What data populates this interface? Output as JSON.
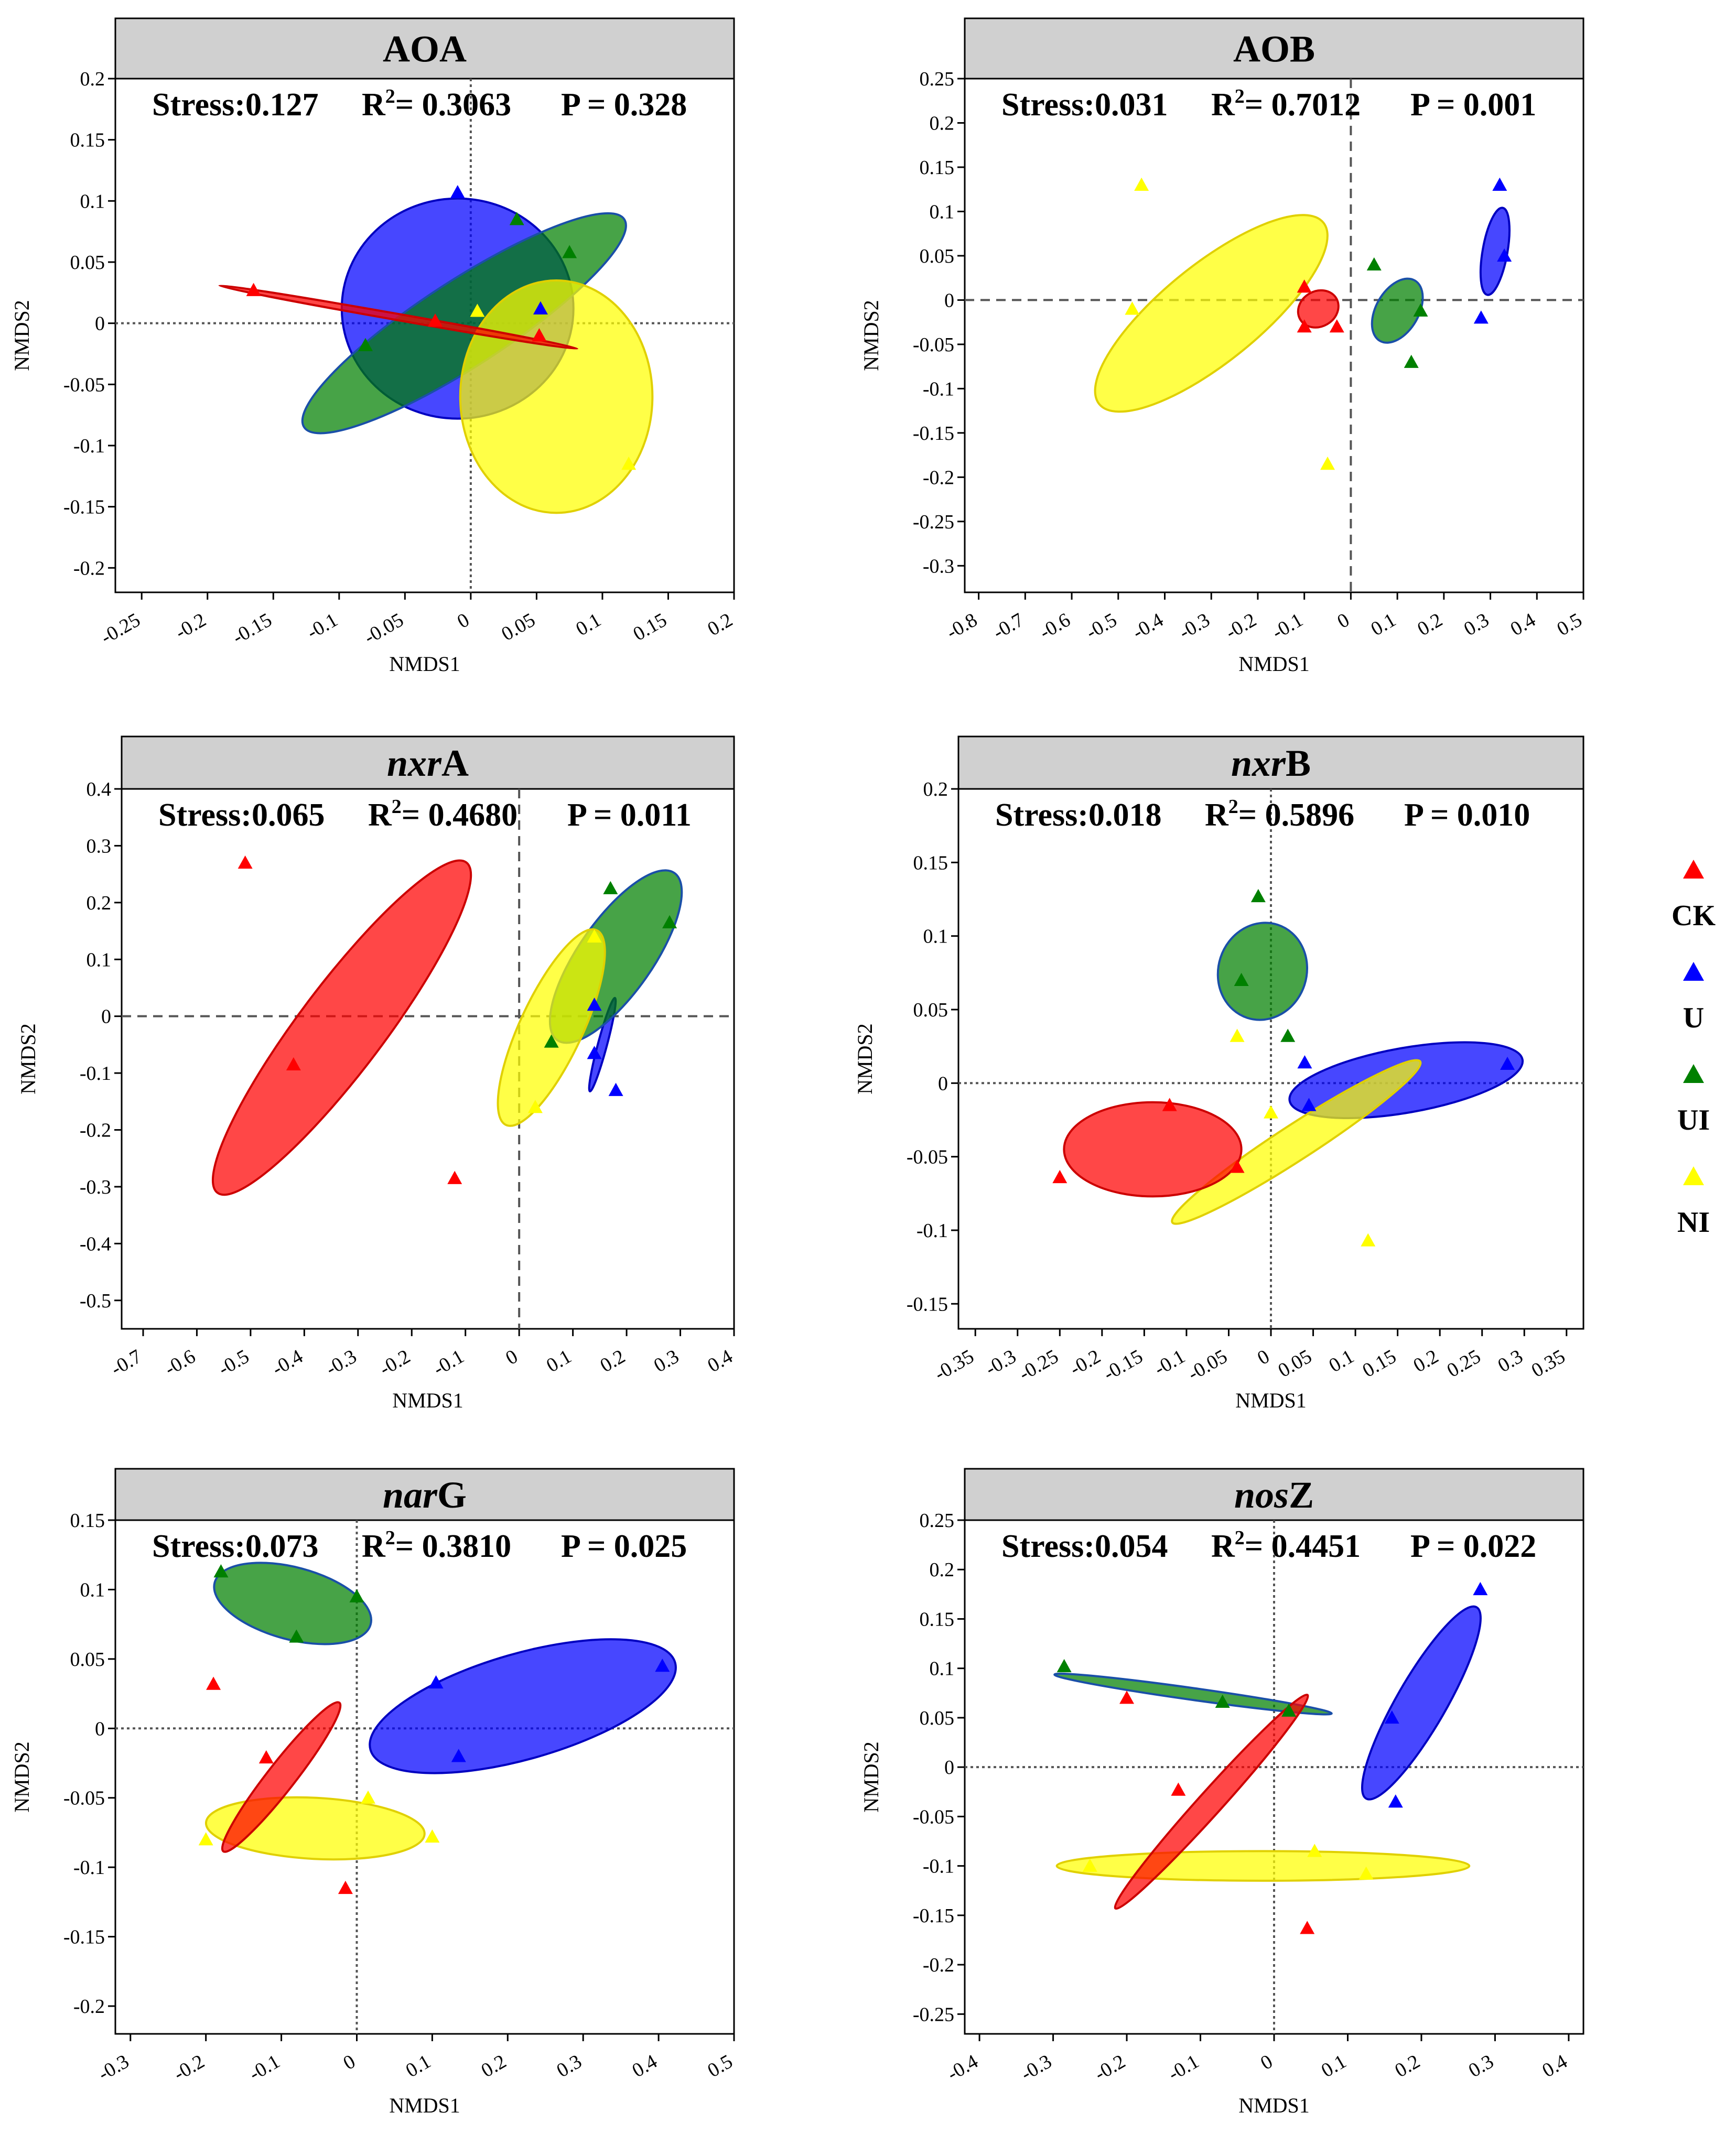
{
  "legend": [
    {
      "label": "CK",
      "color": "#ff0000"
    },
    {
      "label": "U",
      "color": "#0000ff"
    },
    {
      "label": "UI",
      "color": "#008000"
    },
    {
      "label": "NI",
      "color": "#ffff00"
    }
  ],
  "chart_data": [
    {
      "type": "scatter",
      "title": "AOA",
      "stress_label": "Stress:",
      "stress": "0.127",
      "r2_label": "R",
      "r2_sup": "2",
      "r2": "= 0.3063",
      "p": "P = 0.328",
      "xlabel": "NMDS1",
      "ylabel": "NMDS2",
      "xlim": [
        -0.27,
        0.2
      ],
      "ylim": [
        -0.22,
        0.2
      ],
      "xticks": [
        -0.25,
        -0.2,
        -0.15,
        -0.1,
        -0.05,
        0,
        0.05,
        0.1,
        0.15,
        0.2
      ],
      "xtick_labels": [
        "-0.25",
        "-0.2",
        "-0.15",
        "-0.1",
        "-0.05",
        "0",
        "0.05",
        "0.1",
        "0.15",
        "0.2"
      ],
      "yticks": [
        -0.2,
        -0.15,
        -0.1,
        -0.05,
        0,
        0.05,
        0.1,
        0.15,
        0.2
      ],
      "ytick_labels": [
        "-0.2",
        "-0.15",
        "-0.1",
        "-0.05",
        "0",
        "0.05",
        "0.1",
        "0.15",
        "0.2"
      ],
      "zero_line_style": "dotted",
      "series": [
        {
          "name": "U",
          "points": [
            [
              -0.01,
              0.107
            ],
            [
              0.053,
              0.012
            ]
          ],
          "ellipse": {
            "cx": -0.01,
            "cy": 0.012,
            "rx": 0.088,
            "ry": 0.09,
            "angle": 0
          }
        },
        {
          "name": "UI",
          "points": [
            [
              0.035,
              0.085
            ],
            [
              0.075,
              0.058
            ],
            [
              -0.08,
              -0.018
            ]
          ],
          "ellipse": {
            "cx": -0.005,
            "cy": 0.0,
            "rx": 0.145,
            "ry": 0.035,
            "angle": 33
          }
        },
        {
          "name": "NI",
          "points": [
            [
              0.005,
              0.01
            ],
            [
              0.12,
              -0.115
            ]
          ],
          "ellipse": {
            "cx": 0.065,
            "cy": -0.06,
            "rx": 0.073,
            "ry": 0.095,
            "angle": 0
          }
        },
        {
          "name": "CK",
          "points": [
            [
              -0.165,
              0.027
            ],
            [
              -0.027,
              0.002
            ],
            [
              0.052,
              -0.01
            ]
          ],
          "ellipse": {
            "cx": -0.055,
            "cy": 0.005,
            "rx": 0.138,
            "ry": 0.002,
            "angle": -10
          }
        }
      ]
    },
    {
      "type": "scatter",
      "title": "AOB",
      "stress_label": "Stress:",
      "stress": "0.031",
      "r2_label": "R",
      "r2_sup": "2",
      "r2": "= 0.7012",
      "p": "P = 0.001",
      "xlabel": "NMDS1",
      "ylabel": "NMDS2",
      "xlim": [
        -0.83,
        0.5
      ],
      "ylim": [
        -0.33,
        0.25
      ],
      "xticks": [
        -0.8,
        -0.7,
        -0.6,
        -0.5,
        -0.4,
        -0.3,
        -0.2,
        -0.1,
        0,
        0.1,
        0.2,
        0.3,
        0.4,
        0.5
      ],
      "xtick_labels": [
        "-0.8",
        "-0.7",
        "-0.6",
        "-0.5",
        "-0.4",
        "-0.3",
        "-0.2",
        "-0.1",
        "0",
        "0.1",
        "0.2",
        "0.3",
        "0.4",
        "0.5"
      ],
      "yticks": [
        -0.3,
        -0.25,
        -0.2,
        -0.15,
        -0.1,
        -0.05,
        0,
        0.05,
        0.1,
        0.15,
        0.2,
        0.25
      ],
      "ytick_labels": [
        "-0.3",
        "-0.25",
        "-0.2",
        "-0.15",
        "-0.1",
        "-0.05",
        "0",
        "0.05",
        "0.1",
        "0.15",
        "0.2",
        "0.25"
      ],
      "zero_line_style": "dashed",
      "series": [
        {
          "name": "NI",
          "points": [
            [
              -0.45,
              0.13
            ],
            [
              -0.47,
              -0.01
            ],
            [
              -0.05,
              -0.185
            ]
          ],
          "ellipse": {
            "cx": -0.3,
            "cy": -0.015,
            "rx": 0.31,
            "ry": 0.055,
            "angle": 39
          }
        },
        {
          "name": "CK",
          "points": [
            [
              -0.1,
              0.015
            ],
            [
              -0.1,
              -0.03
            ],
            [
              -0.03,
              -0.03
            ]
          ],
          "ellipse": {
            "cx": -0.07,
            "cy": -0.01,
            "rx": 0.045,
            "ry": 0.02,
            "angle": 30
          }
        },
        {
          "name": "UI",
          "points": [
            [
              0.05,
              0.04
            ],
            [
              0.15,
              -0.012
            ],
            [
              0.13,
              -0.07
            ]
          ],
          "ellipse": {
            "cx": 0.1,
            "cy": -0.012,
            "rx": 0.075,
            "ry": 0.024,
            "angle": 60
          }
        },
        {
          "name": "U",
          "points": [
            [
              0.32,
              0.13
            ],
            [
              0.33,
              0.05
            ],
            [
              0.28,
              -0.02
            ]
          ],
          "ellipse": {
            "cx": 0.31,
            "cy": 0.055,
            "rx": 0.095,
            "ry": 0.014,
            "angle": 80
          }
        }
      ]
    },
    {
      "type": "scatter",
      "title_italic": "nxr",
      "title": "A",
      "stress_label": "Stress:",
      "stress": "0.065",
      "r2_label": "R",
      "r2_sup": "2",
      "r2": "= 0.4680",
      "p": "P = 0.011",
      "xlabel": "NMDS1",
      "ylabel": "NMDS2",
      "xlim": [
        -0.74,
        0.4
      ],
      "ylim": [
        -0.55,
        0.4
      ],
      "xticks": [
        -0.7,
        -0.6,
        -0.5,
        -0.4,
        -0.3,
        -0.2,
        -0.1,
        0,
        0.1,
        0.2,
        0.3,
        0.4
      ],
      "xtick_labels": [
        "-0.7",
        "-0.6",
        "-0.5",
        "-0.4",
        "-0.3",
        "-0.2",
        "-0.1",
        "0",
        "0.1",
        "0.2",
        "0.3",
        "0.4"
      ],
      "yticks": [
        -0.5,
        -0.4,
        -0.3,
        -0.2,
        -0.1,
        0,
        0.1,
        0.2,
        0.3,
        0.4
      ],
      "ytick_labels": [
        "-0.5",
        "-0.4",
        "-0.3",
        "-0.2",
        "-0.1",
        "0",
        "0.1",
        "0.2",
        "0.3",
        "0.4"
      ],
      "zero_line_style": "dashed",
      "series": [
        {
          "name": "CK",
          "points": [
            [
              -0.51,
              0.27
            ],
            [
              -0.42,
              -0.085
            ],
            [
              -0.12,
              -0.285
            ]
          ],
          "ellipse": {
            "cx": -0.33,
            "cy": -0.02,
            "rx": 0.385,
            "ry": 0.075,
            "angle": 53
          }
        },
        {
          "name": "NI",
          "points": [
            [
              0.14,
              0.14
            ],
            [
              0.03,
              -0.16
            ]
          ],
          "ellipse": {
            "cx": 0.06,
            "cy": -0.02,
            "rx": 0.2,
            "ry": 0.055,
            "angle": 65
          }
        },
        {
          "name": "UI",
          "points": [
            [
              0.17,
              0.225
            ],
            [
              0.28,
              0.165
            ],
            [
              0.06,
              -0.045
            ]
          ],
          "ellipse": {
            "cx": 0.18,
            "cy": 0.105,
            "rx": 0.19,
            "ry": 0.065,
            "angle": 55
          }
        },
        {
          "name": "U",
          "points": [
            [
              0.14,
              0.02
            ],
            [
              0.14,
              -0.065
            ],
            [
              0.18,
              -0.13
            ]
          ],
          "ellipse": {
            "cx": 0.155,
            "cy": -0.05,
            "rx": 0.09,
            "ry": 0.008,
            "angle": 75
          }
        }
      ]
    },
    {
      "type": "scatter",
      "title_italic": "nxr",
      "title": "B",
      "stress_label": "Stress:",
      "stress": "0.018",
      "r2_label": "R",
      "r2_sup": "2",
      "r2": "= 0.5896",
      "p": "P = 0.010",
      "xlabel": "NMDS1",
      "ylabel": "NMDS2",
      "xlim": [
        -0.37,
        0.37
      ],
      "ylim": [
        -0.167,
        0.2
      ],
      "xticks": [
        -0.35,
        -0.3,
        -0.25,
        -0.2,
        -0.15,
        -0.1,
        -0.05,
        0,
        0.05,
        0.1,
        0.15,
        0.2,
        0.25,
        0.3,
        0.35
      ],
      "xtick_labels": [
        "-0.35",
        "-0.3",
        "-0.25",
        "-0.2",
        "-0.15",
        "-0.1",
        "-0.05",
        "0",
        "0.05",
        "0.1",
        "0.15",
        "0.2",
        "0.25",
        "0.3",
        "0.35"
      ],
      "yticks": [
        -0.15,
        -0.1,
        -0.05,
        0,
        0.05,
        0.1,
        0.15,
        0.2
      ],
      "ytick_labels": [
        "-0.15",
        "-0.1",
        "-0.05",
        "0",
        "0.05",
        "0.1",
        "0.15",
        "0.2"
      ],
      "zero_line_style": "dotted",
      "series": [
        {
          "name": "UI",
          "points": [
            [
              -0.015,
              0.127
            ],
            [
              -0.035,
              0.07
            ],
            [
              0.02,
              0.032
            ]
          ],
          "ellipse": {
            "cx": -0.01,
            "cy": 0.076,
            "rx": 0.058,
            "ry": 0.03,
            "angle": 72
          }
        },
        {
          "name": "U",
          "points": [
            [
              0.04,
              0.014
            ],
            [
              0.045,
              -0.015
            ],
            [
              0.28,
              0.013
            ]
          ],
          "ellipse": {
            "cx": 0.16,
            "cy": 0.002,
            "rx": 0.14,
            "ry": 0.022,
            "angle": 10
          }
        },
        {
          "name": "NI",
          "points": [
            [
              -0.04,
              0.032
            ],
            [
              0.0,
              -0.02
            ],
            [
              0.115,
              -0.107
            ]
          ],
          "ellipse": {
            "cx": 0.03,
            "cy": -0.04,
            "rx": 0.175,
            "ry": 0.012,
            "angle": 33
          }
        },
        {
          "name": "CK",
          "points": [
            [
              -0.25,
              -0.064
            ],
            [
              -0.12,
              -0.015
            ],
            [
              -0.04,
              -0.057
            ]
          ],
          "ellipse": {
            "cx": -0.14,
            "cy": -0.045,
            "rx": 0.105,
            "ry": 0.032,
            "angle": 0
          }
        }
      ]
    },
    {
      "type": "scatter",
      "title_italic": "nar",
      "title": "G",
      "stress_label": "Stress:",
      "stress": "0.073",
      "r2_label": "R",
      "r2_sup": "2",
      "r2": "= 0.3810",
      "p": "P = 0.025",
      "xlabel": "NMDS1",
      "ylabel": "NMDS2",
      "xlim": [
        -0.32,
        0.5
      ],
      "ylim": [
        -0.22,
        0.15
      ],
      "xticks": [
        -0.3,
        -0.2,
        -0.1,
        0,
        0.1,
        0.2,
        0.3,
        0.4,
        0.5
      ],
      "xtick_labels": [
        "-0.3",
        "-0.2",
        "-0.1",
        "0",
        "0.1",
        "0.2",
        "0.3",
        "0.4",
        "0.5"
      ],
      "yticks": [
        -0.2,
        -0.15,
        -0.1,
        -0.05,
        0,
        0.05,
        0.1,
        0.15
      ],
      "ytick_labels": [
        "-0.2",
        "-0.15",
        "-0.1",
        "-0.05",
        "0",
        "0.05",
        "0.1",
        "0.15"
      ],
      "zero_line_style": "dotted",
      "series": [
        {
          "name": "UI",
          "points": [
            [
              -0.18,
              0.113
            ],
            [
              -0.08,
              0.066
            ],
            [
              0.0,
              0.095
            ]
          ],
          "ellipse": {
            "cx": -0.085,
            "cy": 0.09,
            "rx": 0.107,
            "ry": 0.026,
            "angle": -15
          }
        },
        {
          "name": "U",
          "points": [
            [
              0.105,
              0.033
            ],
            [
              0.135,
              -0.02
            ],
            [
              0.405,
              0.045
            ]
          ],
          "ellipse": {
            "cx": 0.22,
            "cy": 0.016,
            "rx": 0.21,
            "ry": 0.038,
            "angle": 16
          }
        },
        {
          "name": "CK",
          "points": [
            [
              -0.19,
              0.032
            ],
            [
              -0.12,
              -0.021
            ],
            [
              -0.015,
              -0.115
            ]
          ],
          "ellipse": {
            "cx": -0.1,
            "cy": -0.035,
            "rx": 0.125,
            "ry": 0.01,
            "angle": 52
          }
        },
        {
          "name": "NI",
          "points": [
            [
              -0.2,
              -0.08
            ],
            [
              0.015,
              -0.05
            ],
            [
              0.1,
              -0.078
            ]
          ],
          "ellipse": {
            "cx": -0.055,
            "cy": -0.072,
            "rx": 0.145,
            "ry": 0.022,
            "angle": -3
          }
        }
      ]
    },
    {
      "type": "scatter",
      "title_italic": "nos",
      "title": "Z",
      "stress_label": "Stress:",
      "stress": "0.054",
      "r2_label": "R",
      "r2_sup": "2",
      "r2": "= 0.4451",
      "p": "P = 0.022",
      "xlabel": "NMDS1",
      "ylabel": "NMDS2",
      "xlim": [
        -0.42,
        0.42
      ],
      "ylim": [
        -0.27,
        0.25
      ],
      "xticks": [
        -0.4,
        -0.3,
        -0.2,
        -0.1,
        0,
        0.1,
        0.2,
        0.3,
        0.4
      ],
      "xtick_labels": [
        "-0.4",
        "-0.3",
        "-0.2",
        "-0.1",
        "0",
        "0.1",
        "0.2",
        "0.3",
        "0.4"
      ],
      "yticks": [
        -0.25,
        -0.2,
        -0.15,
        -0.1,
        -0.05,
        0,
        0.05,
        0.1,
        0.15,
        0.2,
        0.25
      ],
      "ytick_labels": [
        "-0.25",
        "-0.2",
        "-0.15",
        "-0.1",
        "-0.05",
        "0",
        "0.05",
        "0.1",
        "0.15",
        "0.2",
        "0.25"
      ],
      "zero_line_style": "dotted",
      "series": [
        {
          "name": "UI",
          "points": [
            [
              -0.285,
              0.102
            ],
            [
              -0.07,
              0.066
            ],
            [
              0.02,
              0.057
            ]
          ],
          "ellipse": {
            "cx": -0.11,
            "cy": 0.074,
            "rx": 0.19,
            "ry": 0.006,
            "angle": -8
          }
        },
        {
          "name": "U",
          "points": [
            [
              0.28,
              0.18
            ],
            [
              0.16,
              0.05
            ],
            [
              0.165,
              -0.035
            ]
          ],
          "ellipse": {
            "cx": 0.2,
            "cy": 0.065,
            "rx": 0.15,
            "ry": 0.025,
            "angle": 60
          }
        },
        {
          "name": "CK",
          "points": [
            [
              -0.2,
              0.07
            ],
            [
              -0.13,
              -0.023
            ],
            [
              0.045,
              -0.163
            ]
          ],
          "ellipse": {
            "cx": -0.085,
            "cy": -0.035,
            "rx": 0.195,
            "ry": 0.012,
            "angle": 48
          }
        },
        {
          "name": "NI",
          "points": [
            [
              -0.25,
              -0.1
            ],
            [
              0.055,
              -0.085
            ],
            [
              0.125,
              -0.108
            ]
          ],
          "ellipse": {
            "cx": -0.015,
            "cy": -0.1,
            "rx": 0.28,
            "ry": 0.015,
            "angle": 0
          }
        }
      ]
    }
  ]
}
